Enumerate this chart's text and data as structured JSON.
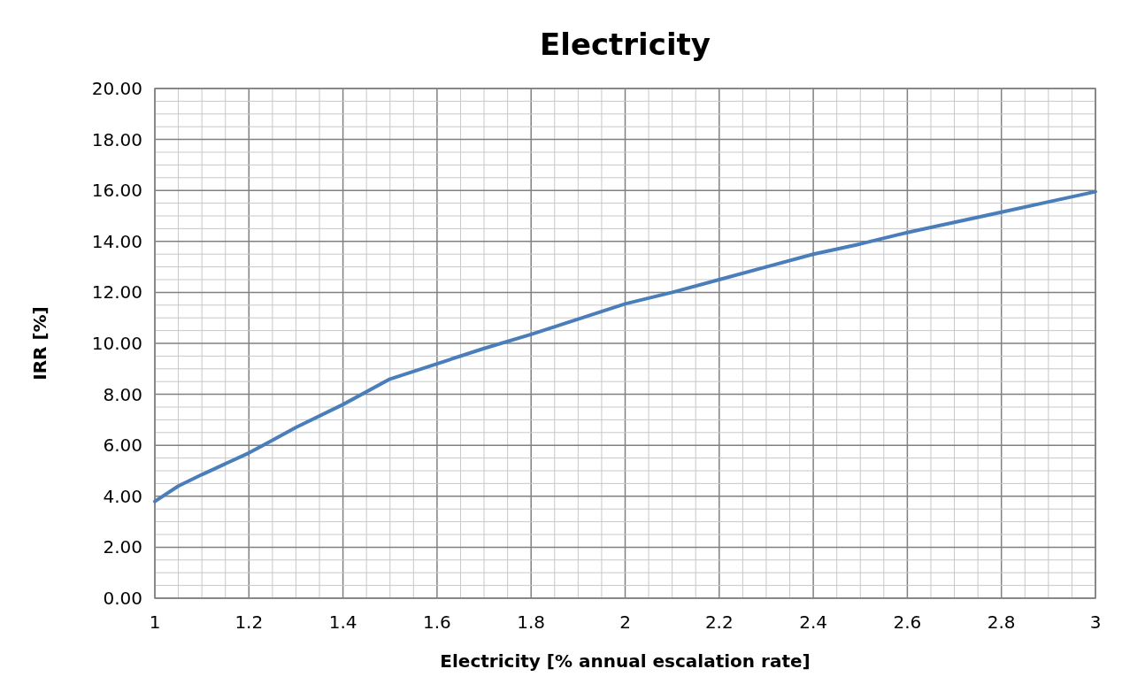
{
  "chart_data": {
    "type": "line",
    "title": "Electricity",
    "xlabel": "Electricity [% annual escalation rate]",
    "ylabel": "IRR [%]",
    "x": [
      1,
      1.05,
      1.1,
      1.2,
      1.25,
      1.3,
      1.4,
      1.5,
      1.6,
      1.7,
      1.8,
      1.9,
      2.0,
      2.1,
      2.2,
      2.3,
      2.4,
      2.5,
      2.6,
      2.7,
      2.8,
      2.9,
      3.0
    ],
    "series": [
      {
        "color": "#4a7ebb",
        "values": [
          3.8,
          4.4,
          4.85,
          5.7,
          6.2,
          6.7,
          7.6,
          8.6,
          9.2,
          9.8,
          10.35,
          10.95,
          11.55,
          12.0,
          12.5,
          13.0,
          13.5,
          13.9,
          14.35,
          14.75,
          15.15,
          15.55,
          15.95
        ]
      }
    ],
    "xlim": [
      1,
      3
    ],
    "ylim": [
      0,
      20
    ],
    "xticks": [
      1,
      {
        "value": 1.05,
        "label": null
      },
      {
        "value": 1.1,
        "label": null
      },
      {
        "value": 1.15,
        "label": null
      },
      1.2,
      {
        "value": 1.25,
        "label": null
      },
      {
        "value": 1.3,
        "label": null
      },
      {
        "value": 1.35,
        "label": null
      },
      1.4,
      {
        "value": 1.45,
        "label": null
      },
      {
        "value": 1.5,
        "label": null
      },
      {
        "value": 1.55,
        "label": null
      },
      1.6,
      {
        "value": 1.65,
        "label": null
      },
      {
        "value": 1.7,
        "label": null
      },
      {
        "value": 1.75,
        "label": null
      },
      1.8,
      {
        "value": 1.85,
        "label": null
      },
      {
        "value": 1.9,
        "label": null
      },
      {
        "value": 1.95,
        "label": null
      },
      2,
      {
        "value": 2.05,
        "label": null
      },
      {
        "value": 2.1,
        "label": null
      },
      {
        "value": 2.15,
        "label": null
      },
      2.2,
      {
        "value": 2.25,
        "label": null
      },
      {
        "value": 2.3,
        "label": null
      },
      {
        "value": 2.35,
        "label": null
      },
      2.4,
      {
        "value": 2.45,
        "label": null
      },
      {
        "value": 2.5,
        "label": null
      },
      {
        "value": 2.55,
        "label": null
      },
      2.6,
      {
        "value": 2.65,
        "label": null
      },
      {
        "value": 2.7,
        "label": null
      },
      {
        "value": 2.75,
        "label": null
      },
      2.8,
      {
        "value": 2.85,
        "label": null
      },
      {
        "value": 2.9,
        "label": null
      },
      {
        "value": 2.95,
        "label": null
      },
      3
    ],
    "yticks": [
      {
        "value": 0,
        "label": "0.00"
      },
      {
        "value": 0.5,
        "label": null
      },
      {
        "value": 1,
        "label": null
      },
      {
        "value": 1.5,
        "label": null
      },
      {
        "value": 2,
        "label": "2.00"
      },
      {
        "value": 2.5,
        "label": null
      },
      {
        "value": 3,
        "label": null
      },
      {
        "value": 3.5,
        "label": null
      },
      {
        "value": 4,
        "label": "4.00"
      },
      {
        "value": 4.5,
        "label": null
      },
      {
        "value": 5,
        "label": null
      },
      {
        "value": 5.5,
        "label": null
      },
      {
        "value": 6,
        "label": "6.00"
      },
      {
        "value": 6.5,
        "label": null
      },
      {
        "value": 7,
        "label": null
      },
      {
        "value": 7.5,
        "label": null
      },
      {
        "value": 8,
        "label": "8.00"
      },
      {
        "value": 8.5,
        "label": null
      },
      {
        "value": 9,
        "label": null
      },
      {
        "value": 9.5,
        "label": null
      },
      {
        "value": 10,
        "label": "10.00"
      },
      {
        "value": 10.5,
        "label": null
      },
      {
        "value": 11,
        "label": null
      },
      {
        "value": 11.5,
        "label": null
      },
      {
        "value": 12,
        "label": "12.00"
      },
      {
        "value": 12.5,
        "label": null
      },
      {
        "value": 13,
        "label": null
      },
      {
        "value": 13.5,
        "label": null
      },
      {
        "value": 14,
        "label": "14.00"
      },
      {
        "value": 14.5,
        "label": null
      },
      {
        "value": 15,
        "label": null
      },
      {
        "value": 15.5,
        "label": null
      },
      {
        "value": 16,
        "label": "16.00"
      },
      {
        "value": 16.5,
        "label": null
      },
      {
        "value": 17,
        "label": null
      },
      {
        "value": 17.5,
        "label": null
      },
      {
        "value": 18,
        "label": "18.00"
      },
      {
        "value": 18.5,
        "label": null
      },
      {
        "value": 19,
        "label": null
      },
      {
        "value": 19.5,
        "label": null
      },
      {
        "value": 20,
        "label": "20.00"
      }
    ],
    "grid": true,
    "marker": "none",
    "line_style": "solid"
  }
}
